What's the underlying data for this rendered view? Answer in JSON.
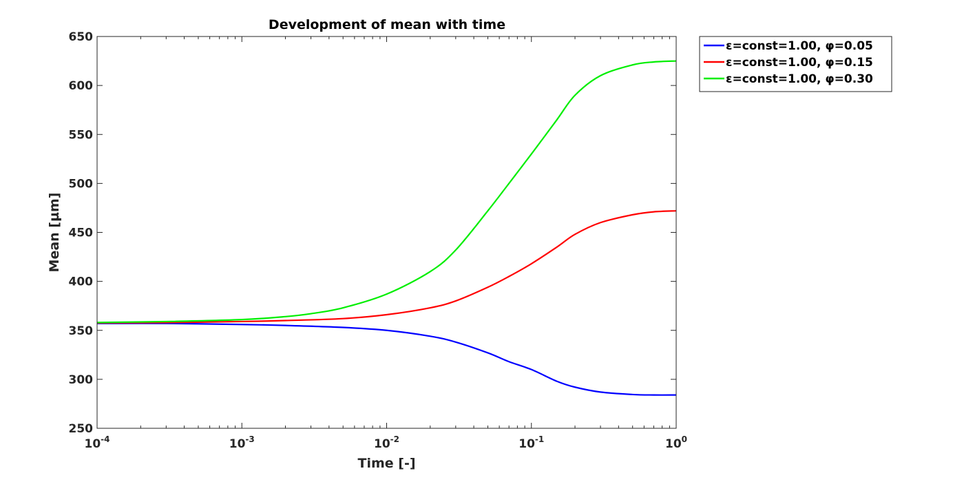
{
  "chart_data": {
    "type": "line",
    "title": "Development of mean with time",
    "xlabel": "Time [-]",
    "ylabel": "Mean [µm]",
    "xscale": "log",
    "xlim": [
      0.0001,
      1
    ],
    "ylim": [
      250,
      650
    ],
    "x_ticks": [
      {
        "value": 0.0001,
        "base": "10",
        "exp": "-4"
      },
      {
        "value": 0.001,
        "base": "10",
        "exp": "-3"
      },
      {
        "value": 0.01,
        "base": "10",
        "exp": "-2"
      },
      {
        "value": 0.1,
        "base": "10",
        "exp": "-1"
      },
      {
        "value": 1,
        "base": "10",
        "exp": "0"
      }
    ],
    "y_ticks": [
      250,
      300,
      350,
      400,
      450,
      500,
      550,
      600,
      650
    ],
    "grid": false,
    "legend_position": "outside-top-right",
    "series": [
      {
        "name": "ε=const=1.00, φ=0.05",
        "color": "#0000ff",
        "x": [
          0.0001,
          0.0003,
          0.001,
          0.002,
          0.005,
          0.01,
          0.02,
          0.03,
          0.05,
          0.07,
          0.1,
          0.15,
          0.2,
          0.3,
          0.5,
          0.7,
          1
        ],
        "y": [
          357,
          357,
          356,
          355,
          353,
          350,
          344,
          338,
          327,
          318,
          310,
          298,
          292,
          287,
          284.5,
          284,
          284
        ]
      },
      {
        "name": "ε=const=1.00, φ=0.15",
        "color": "#ff0000",
        "x": [
          0.0001,
          0.0003,
          0.001,
          0.002,
          0.005,
          0.01,
          0.02,
          0.03,
          0.05,
          0.07,
          0.1,
          0.15,
          0.2,
          0.3,
          0.5,
          0.7,
          1
        ],
        "y": [
          357.5,
          358,
          359,
          360,
          362,
          366,
          373,
          380,
          394,
          405,
          418,
          435,
          448,
          460,
          468,
          471,
          472
        ]
      },
      {
        "name": "ε=const=1.00, φ=0.30",
        "color": "#00ee00",
        "x": [
          0.0001,
          0.0003,
          0.001,
          0.002,
          0.003,
          0.005,
          0.01,
          0.02,
          0.03,
          0.05,
          0.07,
          0.1,
          0.15,
          0.2,
          0.3,
          0.5,
          0.7,
          1
        ],
        "y": [
          358,
          359,
          361,
          364,
          367,
          373,
          387,
          410,
          432,
          472,
          500,
          530,
          565,
          590,
          610,
          621,
          624,
          625
        ]
      }
    ]
  }
}
